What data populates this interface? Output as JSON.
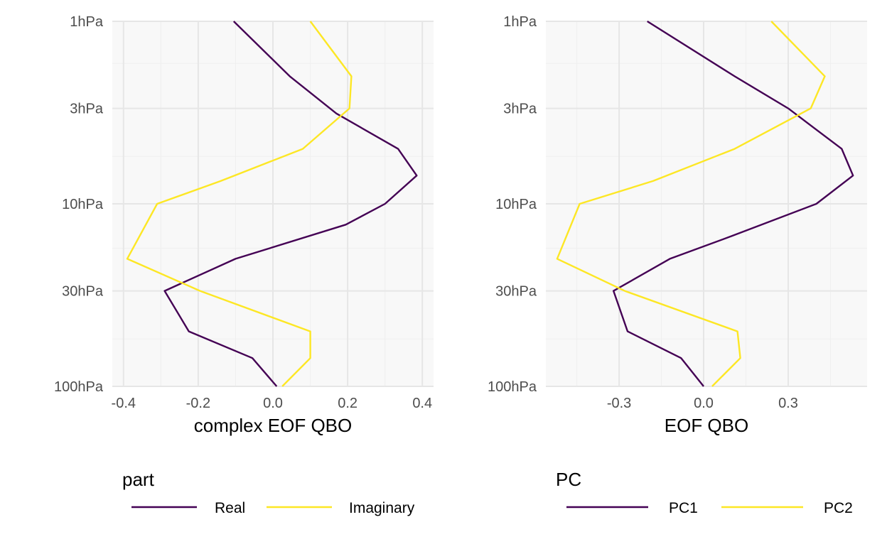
{
  "colors": {
    "series_1": "#440154",
    "series_2": "#FDE725",
    "panel_bg": "#F8F8F8",
    "grid_major": "#E6E6E6",
    "grid_minor": "#EFEFEF"
  },
  "chart_data": [
    {
      "type": "line",
      "orientation": "vertical-profile",
      "xlabel": "complex EOF QBO",
      "ylabel": "",
      "xlim": [
        -0.43,
        0.43
      ],
      "x_ticks": [
        -0.4,
        -0.2,
        0.0,
        0.2,
        0.4
      ],
      "x_tick_labels": [
        "-0.4",
        "-0.2",
        "0.0",
        "0.2",
        "0.4"
      ],
      "y_scale": "log-reversed",
      "ylim": [
        1,
        100
      ],
      "y_ticks": [
        1,
        3,
        10,
        30,
        100
      ],
      "y_tick_labels": [
        "1hPa",
        "3hPa",
        "10hPa",
        "30hPa",
        "100hPa"
      ],
      "y_minor": [
        1.7,
        5.5,
        17.5,
        55
      ],
      "grid": true,
      "legend": {
        "title": "part",
        "position": "bottom"
      },
      "series": [
        {
          "name": "Real",
          "color": "#440154",
          "x": [
            -0.105,
            0.045,
            0.17,
            0.335,
            0.385,
            0.3,
            0.195,
            -0.1,
            -0.29,
            -0.225,
            -0.055,
            0.01
          ],
          "y": [
            1,
            2,
            3.2,
            5,
            7,
            10,
            13,
            20,
            30,
            50,
            70,
            100
          ]
        },
        {
          "name": "Imaginary",
          "color": "#FDE725",
          "x": [
            0.1,
            0.21,
            0.205,
            0.08,
            -0.14,
            -0.31,
            -0.39,
            -0.195,
            0.1,
            0.1,
            0.025
          ],
          "y": [
            1,
            2,
            3,
            5,
            7.5,
            10,
            20,
            30,
            50,
            70,
            100
          ]
        }
      ]
    },
    {
      "type": "line",
      "orientation": "vertical-profile",
      "xlabel": "EOF QBO",
      "ylabel": "",
      "xlim": [
        -0.56,
        0.58
      ],
      "x_ticks": [
        -0.3,
        0.0,
        0.3
      ],
      "x_tick_labels": [
        "-0.3",
        "0.0",
        "0.3"
      ],
      "y_scale": "log-reversed",
      "ylim": [
        1,
        100
      ],
      "y_ticks": [
        1,
        3,
        10,
        30,
        100
      ],
      "y_tick_labels": [
        "1hPa",
        "3hPa",
        "10hPa",
        "30hPa",
        "100hPa"
      ],
      "y_minor": [
        1.7,
        5.5,
        17.5,
        55
      ],
      "grid": true,
      "legend": {
        "title": "PC",
        "position": "bottom"
      },
      "series": [
        {
          "name": "PC1",
          "color": "#440154",
          "x": [
            -0.2,
            0.11,
            0.3,
            0.49,
            0.53,
            0.4,
            0.1,
            -0.12,
            -0.32,
            -0.27,
            -0.08,
            0.0
          ],
          "y": [
            1,
            2,
            3,
            5,
            7,
            10,
            15,
            20,
            30,
            50,
            70,
            100
          ]
        },
        {
          "name": "PC2",
          "color": "#FDE725",
          "x": [
            0.24,
            0.43,
            0.38,
            0.11,
            -0.18,
            -0.44,
            -0.52,
            -0.28,
            0.12,
            0.13,
            0.03
          ],
          "y": [
            1,
            2,
            3,
            5,
            7.5,
            10,
            20,
            30,
            50,
            70,
            100
          ]
        }
      ]
    }
  ]
}
